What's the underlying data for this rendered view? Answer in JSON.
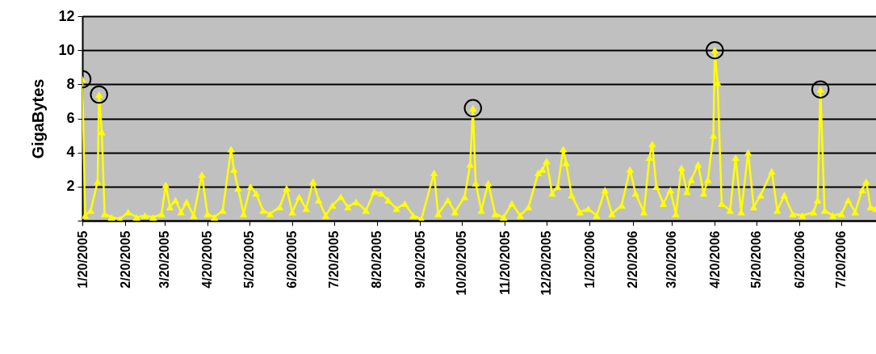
{
  "chart_data": {
    "type": "line",
    "ylabel": "GigaBytes",
    "marker": "triangle",
    "grid": "y",
    "ylim": [
      0,
      12
    ],
    "yticks": [
      {
        "value": 0,
        "label": null
      },
      2,
      4,
      6,
      8,
      10,
      12
    ],
    "xlim": [
      "2005-01-20",
      "2006-08-14"
    ],
    "xticks": [
      {
        "value": "2005-01-20",
        "label": "1/20/2005"
      },
      {
        "value": "2005-02-20",
        "label": "2/20/2005"
      },
      {
        "value": "2005-03-20",
        "label": "3/20/2005"
      },
      {
        "value": "2005-04-20",
        "label": "4/20/2005"
      },
      {
        "value": "2005-05-20",
        "label": "5/20/2005"
      },
      {
        "value": "2005-06-20",
        "label": "6/20/2005"
      },
      {
        "value": "2005-07-20",
        "label": "7/20/2005"
      },
      {
        "value": "2005-08-20",
        "label": "8/20/2005"
      },
      {
        "value": "2005-09-20",
        "label": "9/20/2005"
      },
      {
        "value": "2005-10-20",
        "label": "10/20/2005"
      },
      {
        "value": "2005-11-20",
        "label": "11/20/2005"
      },
      {
        "value": "2005-12-20",
        "label": "12/20/2005"
      },
      {
        "value": "2006-01-20",
        "label": "1/20/2006"
      },
      {
        "value": "2006-02-20",
        "label": "2/20/2006"
      },
      {
        "value": "2006-03-20",
        "label": "3/20/2006"
      },
      {
        "value": "2006-04-20",
        "label": "4/20/2006"
      },
      {
        "value": "2006-05-20",
        "label": "5/20/2006"
      },
      {
        "value": "2006-06-20",
        "label": "6/20/2006"
      },
      {
        "value": "2006-07-20",
        "label": "7/20/2006"
      }
    ],
    "series": [
      {
        "color": "#ffff00",
        "x": [
          "2005-01-20",
          "2005-01-22",
          "2005-01-26",
          "2005-01-31",
          "2005-02-01",
          "2005-02-03",
          "2005-02-05",
          "2005-02-10",
          "2005-02-16",
          "2005-02-22",
          "2005-02-28",
          "2005-03-06",
          "2005-03-12",
          "2005-03-18",
          "2005-03-21",
          "2005-03-24",
          "2005-03-28",
          "2005-04-01",
          "2005-04-05",
          "2005-04-10",
          "2005-04-16",
          "2005-04-20",
          "2005-04-25",
          "2005-05-01",
          "2005-05-07",
          "2005-05-09",
          "2005-05-12",
          "2005-05-16",
          "2005-05-21",
          "2005-05-25",
          "2005-05-30",
          "2005-06-04",
          "2005-06-11",
          "2005-06-16",
          "2005-06-20",
          "2005-06-25",
          "2005-06-30",
          "2005-07-05",
          "2005-07-09",
          "2005-07-14",
          "2005-07-19",
          "2005-07-25",
          "2005-07-30",
          "2005-08-05",
          "2005-08-12",
          "2005-08-18",
          "2005-08-23",
          "2005-08-28",
          "2005-09-03",
          "2005-09-09",
          "2005-09-15",
          "2005-09-21",
          "2005-09-30",
          "2005-10-03",
          "2005-10-10",
          "2005-10-15",
          "2005-10-22",
          "2005-10-26",
          "2005-10-28",
          "2005-10-30",
          "2005-11-03",
          "2005-11-08",
          "2005-11-13",
          "2005-11-19",
          "2005-11-25",
          "2005-12-01",
          "2005-12-07",
          "2005-12-14",
          "2005-12-17",
          "2005-12-20",
          "2005-12-24",
          "2005-12-28",
          "2006-01-01",
          "2006-01-03",
          "2006-01-07",
          "2006-01-13",
          "2006-01-19",
          "2006-01-25",
          "2006-01-31",
          "2006-02-05",
          "2006-02-12",
          "2006-02-18",
          "2006-02-22",
          "2006-02-28",
          "2006-03-04",
          "2006-03-06",
          "2006-03-09",
          "2006-03-14",
          "2006-03-19",
          "2006-03-23",
          "2006-03-27",
          "2006-03-31",
          "2006-04-03",
          "2006-04-08",
          "2006-04-12",
          "2006-04-15",
          "2006-04-19",
          "2006-04-20",
          "2006-04-22",
          "2006-04-25",
          "2006-05-01",
          "2006-05-05",
          "2006-05-09",
          "2006-05-14",
          "2006-05-18",
          "2006-05-23",
          "2006-05-31",
          "2006-06-04",
          "2006-06-09",
          "2006-06-15",
          "2006-06-22",
          "2006-06-30",
          "2006-07-03",
          "2006-07-05",
          "2006-07-08",
          "2006-07-14",
          "2006-07-20",
          "2006-07-25",
          "2006-07-30",
          "2006-08-04",
          "2006-08-07",
          "2006-08-10",
          "2006-08-14"
        ],
        "values": [
          8.3,
          0.3,
          0.6,
          2.3,
          7.4,
          5.2,
          0.4,
          0.2,
          0.1,
          0.5,
          0.2,
          0.3,
          0.2,
          0.4,
          2.1,
          0.8,
          1.2,
          0.5,
          1.1,
          0.3,
          2.7,
          0.4,
          0.2,
          0.6,
          4.2,
          3.0,
          1.9,
          0.4,
          2.0,
          1.6,
          0.6,
          0.4,
          0.8,
          1.9,
          0.5,
          1.4,
          0.7,
          2.3,
          1.2,
          0.3,
          0.9,
          1.4,
          0.8,
          1.1,
          0.6,
          1.7,
          1.6,
          1.2,
          0.7,
          1.0,
          0.3,
          0.1,
          2.8,
          0.4,
          1.2,
          0.5,
          1.4,
          3.3,
          6.6,
          2.2,
          0.6,
          2.2,
          0.4,
          0.2,
          1.0,
          0.3,
          0.8,
          2.8,
          3.0,
          3.5,
          1.6,
          2.0,
          4.2,
          3.4,
          1.5,
          0.5,
          0.7,
          0.3,
          1.8,
          0.4,
          0.9,
          3.0,
          1.6,
          0.5,
          3.7,
          4.5,
          2.0,
          1.0,
          1.8,
          0.4,
          3.1,
          1.7,
          2.4,
          3.3,
          1.6,
          2.4,
          5.0,
          10.0,
          8.1,
          1.0,
          0.6,
          3.7,
          0.5,
          4.0,
          0.8,
          1.5,
          2.9,
          0.6,
          1.5,
          0.4,
          0.3,
          0.5,
          1.2,
          7.7,
          0.6,
          0.3,
          0.4,
          1.2,
          0.5,
          1.8,
          2.3,
          0.8,
          0.7
        ]
      },
      {
        "type": "scatter",
        "marker": "circle",
        "color": "#000000",
        "x": [
          "2005-01-20",
          "2005-02-01",
          "2005-10-28",
          "2006-04-20",
          "2006-07-05"
        ],
        "values": [
          8.3,
          7.4,
          6.6,
          10.0,
          7.7
        ]
      }
    ]
  }
}
